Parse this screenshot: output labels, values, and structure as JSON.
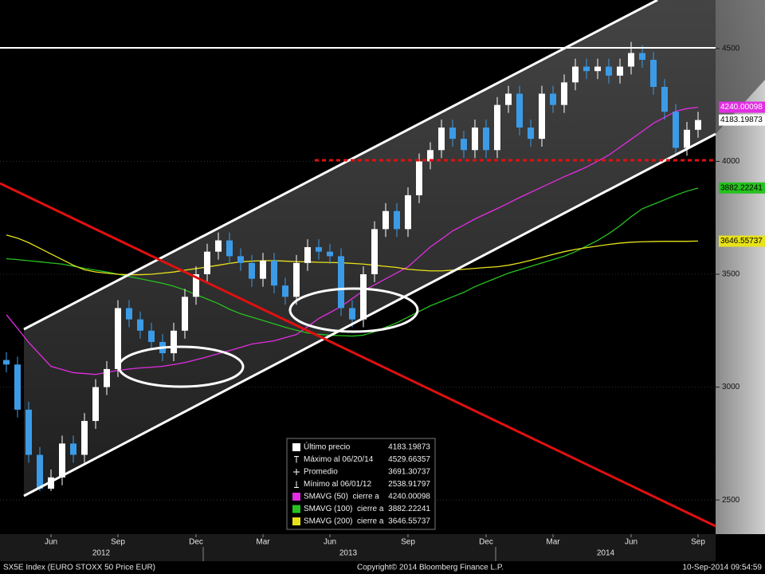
{
  "chart_data": {
    "type": "candlestick",
    "categories": [
      null,
      null,
      null,
      null,
      "Jun",
      null,
      null,
      null,
      null,
      null,
      "Sep",
      null,
      null,
      null,
      null,
      null,
      null,
      "Dec",
      null,
      null,
      null,
      null,
      null,
      "Mar",
      null,
      null,
      null,
      null,
      null,
      "Jun",
      null,
      null,
      null,
      null,
      null,
      null,
      "Sep",
      null,
      null,
      null,
      null,
      null,
      null,
      "Dec",
      null,
      null,
      null,
      null,
      null,
      "Mar",
      null,
      null,
      null,
      null,
      null,
      null,
      "Jun",
      null,
      null,
      null,
      null,
      null,
      "Sep"
    ],
    "years": [
      "2012",
      "2013",
      "2014"
    ],
    "open": [
      3120,
      3100,
      2900,
      2700,
      2550,
      2600,
      2750,
      2700,
      2850,
      3000,
      3080,
      3350,
      3300,
      3250,
      3200,
      3150,
      3250,
      3400,
      3500,
      3600,
      3650,
      3580,
      3550,
      3480,
      3560,
      3450,
      3400,
      3550,
      3620,
      3600,
      3580,
      3350,
      3300,
      3500,
      3700,
      3780,
      3700,
      3850,
      4000,
      4050,
      4150,
      4100,
      4050,
      4150,
      4050,
      4250,
      4300,
      4150,
      4100,
      4300,
      4250,
      4350,
      4420,
      4400,
      4420,
      4380,
      4420,
      4480,
      4450,
      4330,
      4220,
      4060,
      4140
    ],
    "high": [
      3155,
      3135,
      2935,
      2735,
      2635,
      2785,
      2785,
      2885,
      3035,
      3115,
      3385,
      3385,
      3335,
      3285,
      3235,
      3285,
      3435,
      3535,
      3635,
      3685,
      3685,
      3615,
      3585,
      3595,
      3595,
      3485,
      3585,
      3655,
      3655,
      3635,
      3615,
      3385,
      3535,
      3735,
      3815,
      3815,
      3885,
      4035,
      4085,
      4185,
      4185,
      4135,
      4185,
      4185,
      4285,
      4335,
      4335,
      4185,
      4335,
      4335,
      4385,
      4455,
      4455,
      4455,
      4455,
      4455,
      4529.66357,
      4515,
      4485,
      4365,
      4255,
      4175,
      4220
    ],
    "low": [
      3065,
      2865,
      2665,
      2539,
      2540,
      2565,
      2665,
      2665,
      2815,
      2965,
      3045,
      3265,
      3215,
      3165,
      3115,
      3115,
      3215,
      3365,
      3465,
      3565,
      3545,
      3515,
      3445,
      3445,
      3415,
      3365,
      3365,
      3515,
      3565,
      3545,
      3315,
      3265,
      3265,
      3465,
      3665,
      3665,
      3665,
      3815,
      3965,
      4015,
      4065,
      4015,
      4015,
      4015,
      4015,
      4215,
      4115,
      4065,
      4065,
      4215,
      4215,
      4315,
      4365,
      4365,
      4345,
      4345,
      4385,
      4415,
      4295,
      4185,
      4025,
      4025,
      4105
    ],
    "close": [
      3100,
      2900,
      2700,
      2550,
      2600,
      2750,
      2700,
      2850,
      3000,
      3080,
      3350,
      3300,
      3250,
      3200,
      3150,
      3250,
      3400,
      3500,
      3600,
      3650,
      3580,
      3550,
      3480,
      3560,
      3450,
      3400,
      3550,
      3620,
      3600,
      3580,
      3350,
      3300,
      3500,
      3700,
      3780,
      3700,
      3850,
      4000,
      4050,
      4150,
      4100,
      4050,
      4150,
      4050,
      4250,
      4300,
      4150,
      4100,
      4300,
      4250,
      4350,
      4420,
      4400,
      4420,
      4380,
      4420,
      4480,
      4450,
      4330,
      4220,
      4060,
      4140,
      4183.19873
    ],
    "up_color": "#ffffff",
    "down_color": "#3c9be6",
    "last_price": 4183.19873,
    "series": [
      {
        "name": "SMAVG (50)  cierre a",
        "color": "#e22de2",
        "last": 4240.00098,
        "values": [
          3321,
          3260,
          3198,
          3145,
          3092,
          3078,
          3064,
          3060,
          3056,
          3065,
          3074,
          3080,
          3085,
          3088,
          3092,
          3100,
          3109,
          3121,
          3134,
          3148,
          3162,
          3176,
          3191,
          3198,
          3205,
          3219,
          3233,
          3268,
          3304,
          3330,
          3357,
          3392,
          3427,
          3453,
          3480,
          3506,
          3533,
          3577,
          3621,
          3656,
          3692,
          3718,
          3745,
          3768,
          3791,
          3815,
          3840,
          3863,
          3886,
          3909,
          3932,
          3953,
          3975,
          4001,
          4028,
          4063,
          4098,
          4133,
          4169,
          4195,
          4222,
          4234,
          4240
        ]
      },
      {
        "name": "SMAVG (100)  cierre a",
        "color": "#27c21f",
        "last": 3882.22241,
        "values": [
          3569,
          3565,
          3560,
          3555,
          3550,
          3545,
          3536,
          3526,
          3518,
          3510,
          3500,
          3490,
          3480,
          3470,
          3460,
          3447,
          3430,
          3410,
          3390,
          3370,
          3345,
          3325,
          3310,
          3295,
          3280,
          3265,
          3252,
          3240,
          3234,
          3230,
          3228,
          3226,
          3230,
          3245,
          3265,
          3285,
          3310,
          3335,
          3360,
          3380,
          3400,
          3420,
          3445,
          3465,
          3485,
          3505,
          3520,
          3535,
          3550,
          3565,
          3580,
          3600,
          3625,
          3650,
          3680,
          3715,
          3755,
          3790,
          3810,
          3830,
          3850,
          3868,
          3882
        ]
      },
      {
        "name": "SMAVG (200)  cierre a",
        "color": "#e8e21a",
        "last": 3646.55737,
        "values": [
          3674,
          3660,
          3640,
          3615,
          3590,
          3565,
          3540,
          3520,
          3510,
          3505,
          3500,
          3498,
          3498,
          3500,
          3505,
          3510,
          3518,
          3525,
          3532,
          3540,
          3548,
          3555,
          3558,
          3560,
          3560,
          3558,
          3556,
          3555,
          3553,
          3552,
          3551,
          3548,
          3545,
          3540,
          3535,
          3530,
          3522,
          3518,
          3515,
          3515,
          3518,
          3522,
          3526,
          3530,
          3533,
          3540,
          3550,
          3562,
          3575,
          3588,
          3600,
          3610,
          3618,
          3625,
          3632,
          3638,
          3642,
          3644,
          3645,
          3646,
          3646,
          3646,
          3647
        ]
      }
    ],
    "stats": [
      {
        "label": "Último precio",
        "value": 4183.19873
      },
      {
        "label": "Máximo al 06/20/14",
        "value": 4529.66357
      },
      {
        "label": "Promedio",
        "value": 3691.30737
      },
      {
        "label": "Mínimo al 06/01/12",
        "value": 2538.91797
      }
    ],
    "ylim": [
      2285,
      4715
    ],
    "yticks": [
      2500,
      3000,
      3500,
      4000,
      4500
    ],
    "footer": {
      "ticker": "SX5E Index (EURO STOXX 50 Price EUR)",
      "copyright": "Copyright© 2014 Bloomberg Finance L.P.",
      "timestamp": "10-Sep-2014 09:54:59"
    }
  }
}
